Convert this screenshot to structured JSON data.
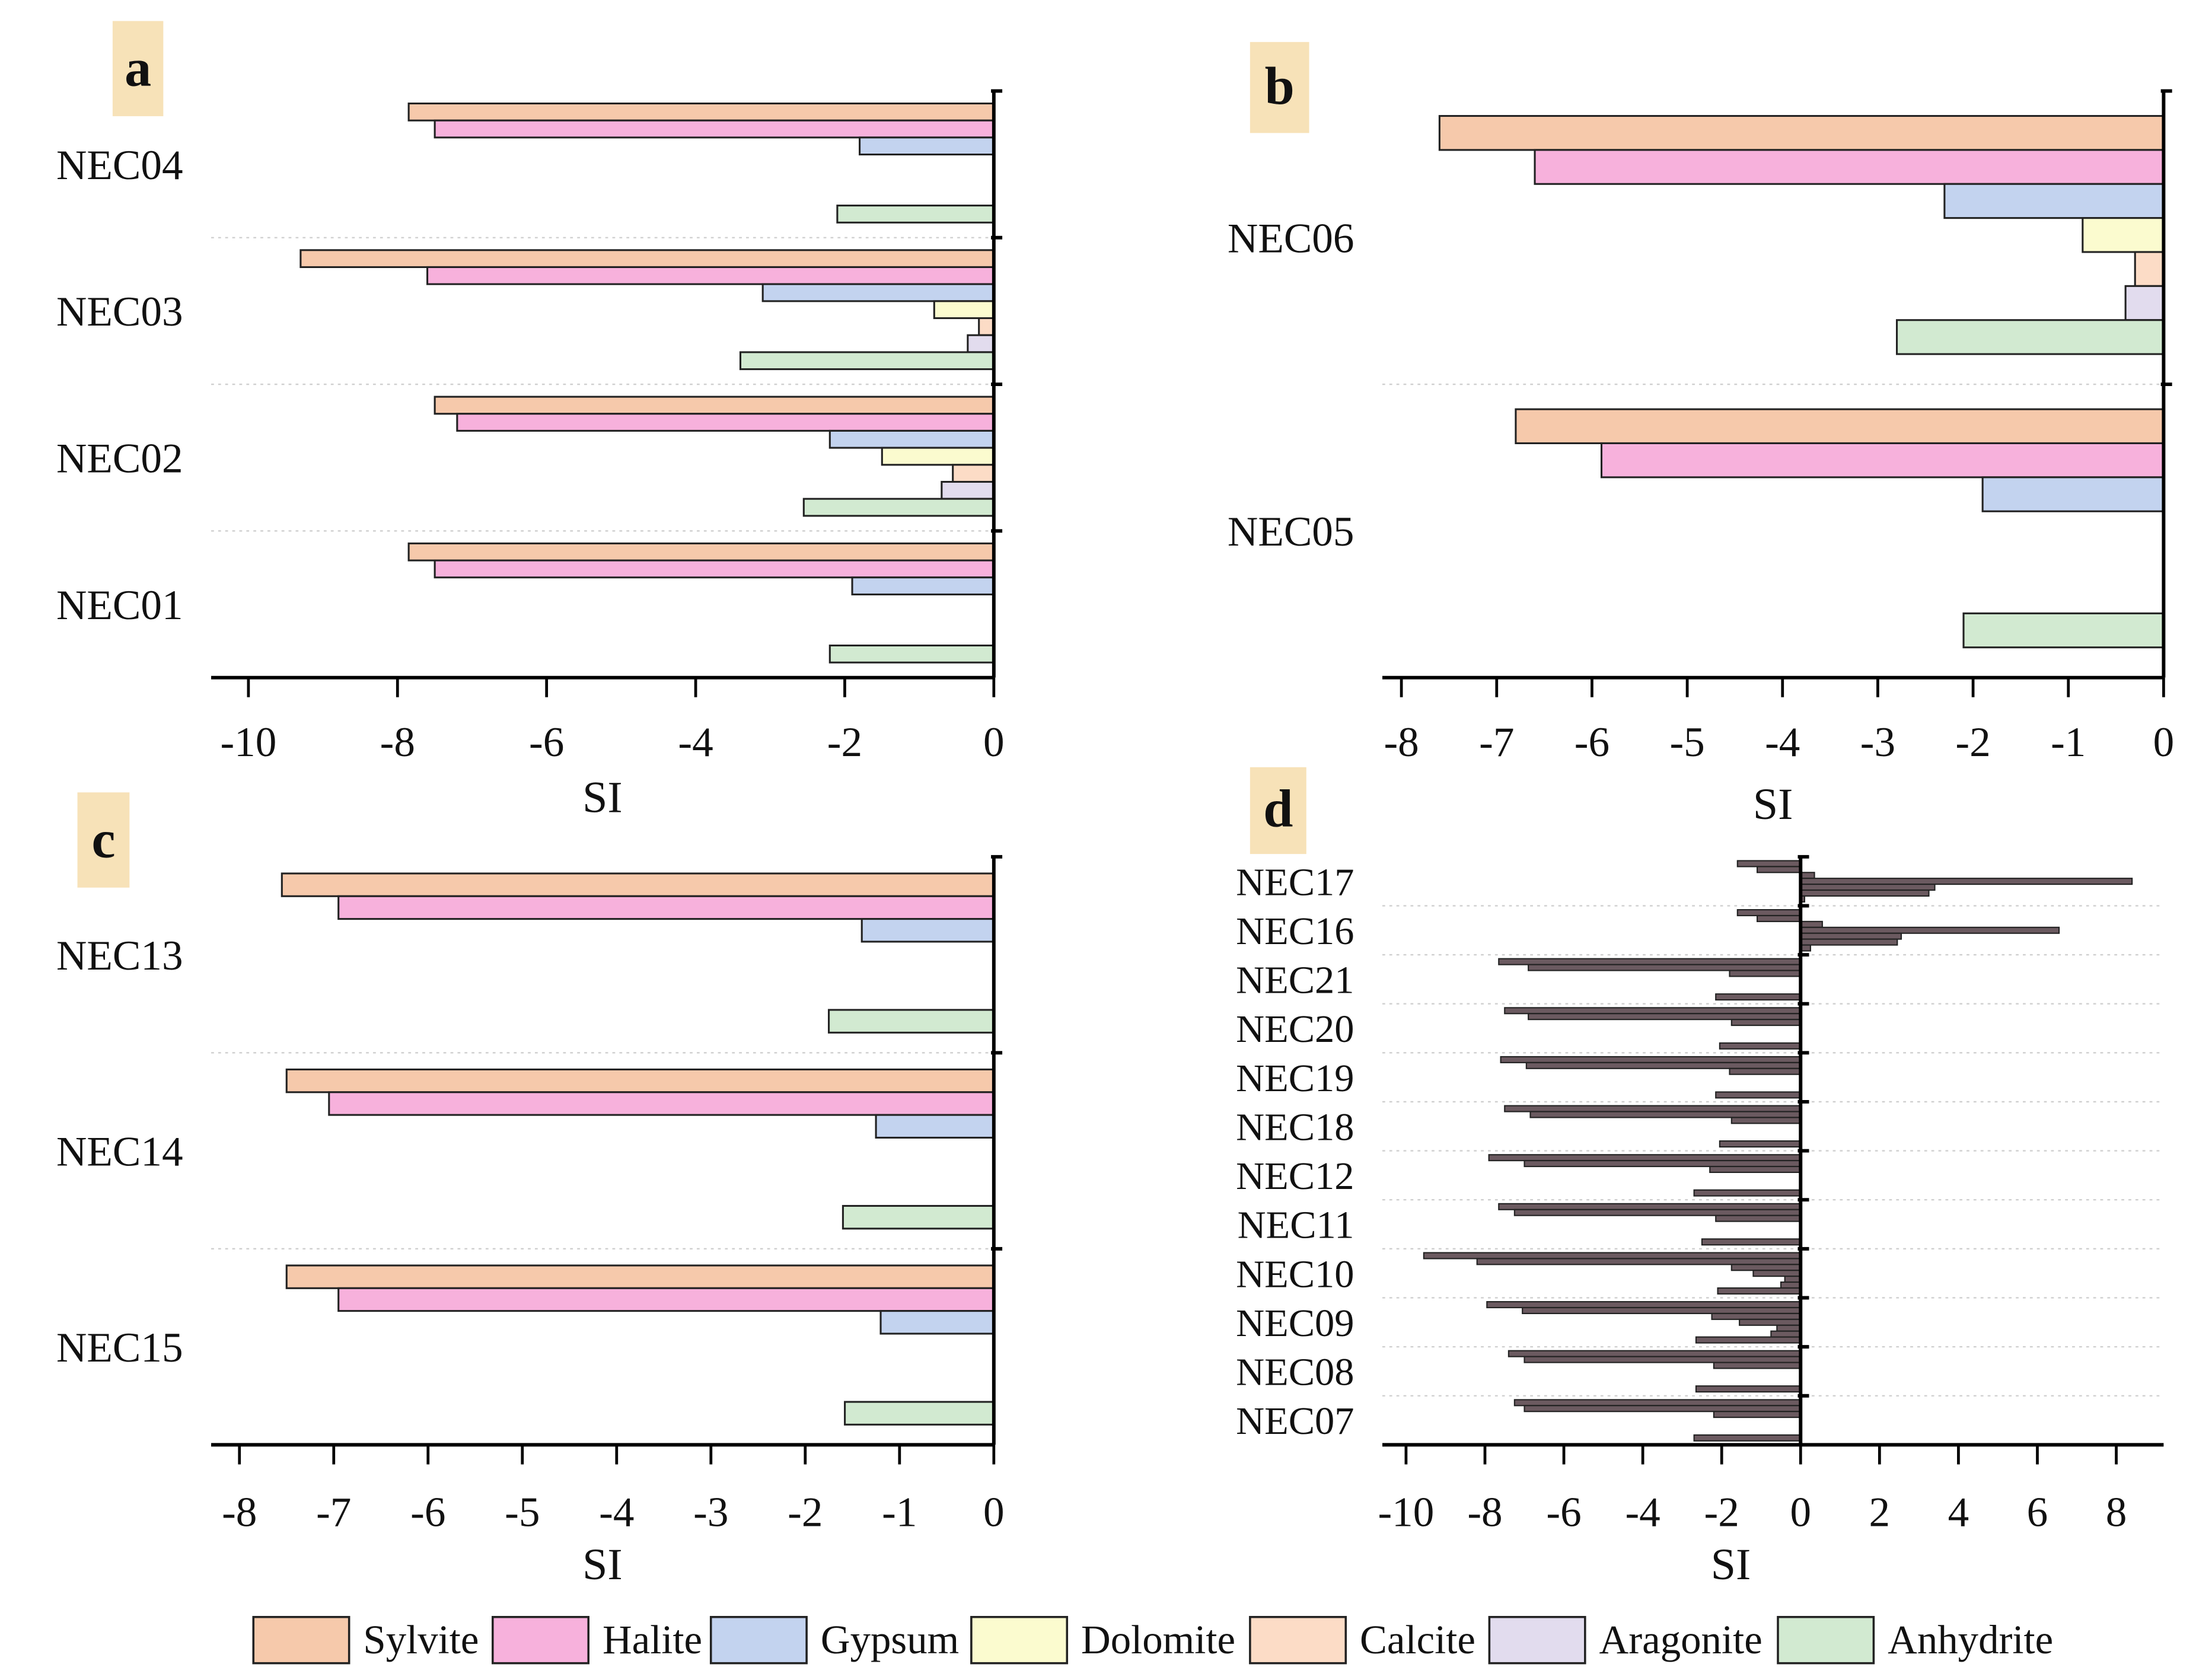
{
  "chart_data": [
    {
      "type": "bar",
      "orientation": "horizontal",
      "panel_label": "a",
      "xlabel": "SI",
      "xlim": [
        -10.5,
        0
      ],
      "xticks": [
        -10,
        -8,
        -6,
        -4,
        -2,
        0
      ],
      "xtick_labels": [
        "-10",
        "-8",
        "-6",
        "-4",
        "-2",
        "0"
      ],
      "categories": [
        "NEC04",
        "NEC03",
        "NEC02",
        "NEC01"
      ],
      "series": [
        {
          "name": "Sylvite",
          "values": [
            -7.85,
            -9.3,
            -7.5,
            -7.85
          ]
        },
        {
          "name": "Halite",
          "values": [
            -7.5,
            -7.6,
            -7.2,
            -7.5
          ]
        },
        {
          "name": "Gypsum",
          "values": [
            -1.8,
            -3.1,
            -2.2,
            -1.9
          ]
        },
        {
          "name": "Dolomite",
          "values": [
            null,
            -0.8,
            -1.5,
            null
          ]
        },
        {
          "name": "Calcite",
          "values": [
            null,
            -0.2,
            -0.55,
            null
          ]
        },
        {
          "name": "Aragonite",
          "values": [
            null,
            -0.35,
            -0.7,
            null
          ]
        },
        {
          "name": "Anhydrite",
          "values": [
            -2.1,
            -3.4,
            -2.55,
            -2.2
          ]
        }
      ]
    },
    {
      "type": "bar",
      "orientation": "horizontal",
      "panel_label": "b",
      "xlabel": "SI",
      "xlim": [
        -8.2,
        0
      ],
      "xticks": [
        -8,
        -7,
        -6,
        -5,
        -4,
        -3,
        -2,
        -1,
        0
      ],
      "xtick_labels": [
        "-8",
        "-7",
        "-6",
        "-5",
        "-4",
        "-3",
        "-2",
        "-1",
        "0"
      ],
      "categories": [
        "NEC06",
        "NEC05"
      ],
      "series": [
        {
          "name": "Sylvite",
          "values": [
            -7.6,
            -6.8
          ]
        },
        {
          "name": "Halite",
          "values": [
            -6.6,
            -5.9
          ]
        },
        {
          "name": "Gypsum",
          "values": [
            -2.3,
            -1.9
          ]
        },
        {
          "name": "Dolomite",
          "values": [
            -0.85,
            null
          ]
        },
        {
          "name": "Calcite",
          "values": [
            -0.3,
            null
          ]
        },
        {
          "name": "Aragonite",
          "values": [
            -0.4,
            null
          ]
        },
        {
          "name": "Anhydrite",
          "values": [
            -2.8,
            -2.1
          ]
        }
      ]
    },
    {
      "type": "bar",
      "orientation": "horizontal",
      "panel_label": "c",
      "xlabel": "SI",
      "xlim": [
        -8.3,
        0
      ],
      "xticks": [
        -8,
        -7,
        -6,
        -5,
        -4,
        -3,
        -2,
        -1,
        0
      ],
      "xtick_labels": [
        "-8",
        "-7",
        "-6",
        "-5",
        "-4",
        "-3",
        "-2",
        "-1",
        "0"
      ],
      "categories": [
        "NEC13",
        "NEC14",
        "NEC15"
      ],
      "series": [
        {
          "name": "Sylvite",
          "values": [
            -7.55,
            -7.5,
            -7.5
          ]
        },
        {
          "name": "Halite",
          "values": [
            -6.95,
            -7.05,
            -6.95
          ]
        },
        {
          "name": "Gypsum",
          "values": [
            -1.4,
            -1.25,
            -1.2
          ]
        },
        {
          "name": "Dolomite",
          "values": [
            null,
            null,
            null
          ]
        },
        {
          "name": "Calcite",
          "values": [
            null,
            null,
            null
          ]
        },
        {
          "name": "Aragonite",
          "values": [
            null,
            null,
            null
          ]
        },
        {
          "name": "Anhydrite",
          "values": [
            -1.75,
            -1.6,
            -1.58
          ]
        }
      ]
    },
    {
      "type": "bar",
      "orientation": "horizontal",
      "panel_label": "d",
      "xlabel": "SI",
      "xlim": [
        -10.6,
        9.2
      ],
      "xticks": [
        -10,
        -8,
        -6,
        -4,
        -2,
        0,
        2,
        4,
        6,
        8
      ],
      "xtick_labels": [
        "-10",
        "-8",
        "-6",
        "-4",
        "-2",
        "0",
        "2",
        "4",
        "6",
        "8"
      ],
      "categories": [
        "NEC17",
        "NEC16",
        "NEC21",
        "NEC20",
        "NEC19",
        "NEC18",
        "NEC12",
        "NEC11",
        "NEC10",
        "NEC09",
        "NEC08",
        "NEC07"
      ],
      "series": [
        {
          "name": "Sylvite",
          "values": [
            -1.6,
            -1.6,
            -7.65,
            -7.5,
            -7.6,
            -7.5,
            -7.9,
            -7.65,
            -9.55,
            -7.95,
            -7.4,
            -7.25
          ]
        },
        {
          "name": "Halite",
          "values": [
            -1.1,
            -1.1,
            -6.9,
            -6.9,
            -6.95,
            -6.85,
            -7.0,
            -7.25,
            -8.2,
            -7.05,
            -7.0,
            -7.0
          ]
        },
        {
          "name": "Gypsum",
          "values": [
            0.35,
            0.55,
            -1.8,
            -1.75,
            -1.8,
            -1.75,
            -2.3,
            -2.15,
            -1.75,
            -2.25,
            -2.2,
            -2.2
          ]
        },
        {
          "name": "Dolomite",
          "values": [
            8.4,
            6.55,
            null,
            null,
            null,
            null,
            null,
            null,
            -1.2,
            -1.55,
            null,
            null
          ]
        },
        {
          "name": "Calcite",
          "values": [
            3.4,
            2.55,
            null,
            null,
            null,
            null,
            null,
            null,
            -0.4,
            -0.6,
            null,
            null
          ]
        },
        {
          "name": "Aragonite",
          "values": [
            3.25,
            2.45,
            null,
            null,
            null,
            null,
            null,
            null,
            -0.5,
            -0.75,
            null,
            null
          ]
        },
        {
          "name": "Anhydrite",
          "values": [
            0.1,
            0.25,
            -2.15,
            -2.05,
            -2.15,
            -2.05,
            -2.7,
            -2.5,
            -2.1,
            -2.65,
            -2.65,
            -2.7
          ]
        }
      ]
    }
  ],
  "legend": {
    "placement": "bottom",
    "items": [
      "Sylvite",
      "Halite",
      "Gypsum",
      "Dolomite",
      "Calcite",
      "Aragonite",
      "Anhydrite"
    ]
  },
  "colors": {
    "Sylvite": "#f6c9ab",
    "Halite": "#f7b1dc",
    "Gypsum": "#c3d3ef",
    "Dolomite": "#fbfbcf",
    "Calcite": "#fcdcc6",
    "Aragonite": "#e2dcee",
    "Anhydrite": "#d2ead1",
    "panel_label_bg": "#f7e2b8",
    "panel_d_fill": "#6b5a60"
  }
}
